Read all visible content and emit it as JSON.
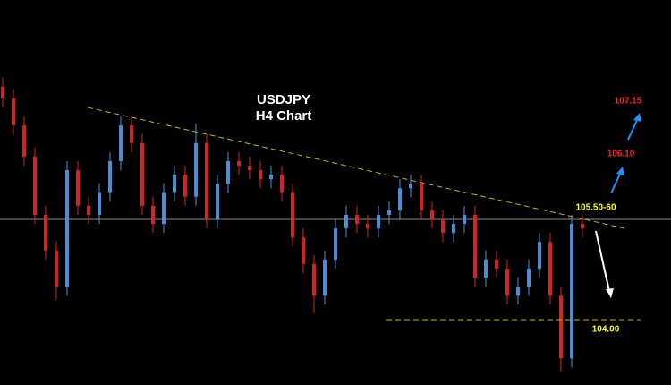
{
  "chart_data": {
    "type": "candlestick",
    "title": "USDJPY",
    "subtitle": "H4 Chart",
    "up_color": "#4a8fd6",
    "down_color": "#d42323",
    "ylim": [
      102.99,
      108.94
    ],
    "open": [
      107.6,
      107.42,
      107.0,
      106.52,
      105.62,
      105.07,
      104.51,
      106.31,
      105.76,
      105.62,
      105.97,
      106.45,
      107.0,
      106.73,
      105.76,
      105.48,
      105.97,
      106.24,
      105.9,
      106.73,
      105.55,
      106.1,
      106.45,
      106.38,
      106.31,
      106.17,
      106.24,
      105.97,
      105.27,
      104.86,
      104.37,
      104.93,
      105.41,
      105.62,
      105.48,
      105.41,
      105.62,
      105.69,
      106.03,
      106.1,
      105.69,
      105.55,
      105.34,
      105.48,
      105.62,
      104.65,
      104.93,
      104.79,
      104.37,
      104.51,
      104.79,
      105.2,
      104.37,
      103.4,
      105.48
    ],
    "high": [
      107.74,
      107.56,
      107.14,
      106.66,
      105.76,
      105.21,
      106.45,
      106.45,
      105.9,
      106.11,
      106.59,
      107.14,
      107.14,
      106.87,
      105.9,
      106.11,
      106.38,
      106.38,
      107.03,
      106.87,
      106.24,
      106.59,
      106.59,
      106.52,
      106.45,
      106.38,
      106.38,
      106.11,
      105.41,
      105.0,
      105.07,
      105.55,
      105.76,
      105.76,
      105.62,
      105.76,
      105.83,
      106.17,
      106.24,
      106.24,
      105.83,
      105.69,
      105.62,
      105.76,
      105.76,
      105.07,
      105.07,
      104.93,
      104.65,
      104.93,
      105.34,
      105.34,
      104.51,
      105.62,
      105.62
    ],
    "low": [
      107.28,
      106.86,
      106.38,
      105.48,
      104.93,
      104.3,
      104.37,
      105.62,
      105.48,
      105.48,
      105.83,
      106.31,
      106.59,
      105.62,
      105.34,
      105.34,
      105.83,
      105.76,
      105.76,
      105.41,
      105.41,
      105.96,
      106.24,
      106.17,
      106.03,
      106.03,
      105.83,
      105.13,
      104.72,
      104.1,
      104.23,
      104.79,
      105.27,
      105.34,
      105.27,
      105.27,
      105.48,
      105.55,
      105.89,
      105.55,
      105.41,
      105.2,
      105.2,
      105.34,
      104.51,
      104.51,
      104.65,
      104.23,
      104.23,
      104.37,
      104.65,
      104.23,
      103.2,
      103.26,
      105.27
    ],
    "close": [
      107.42,
      107.0,
      106.52,
      105.62,
      105.07,
      104.51,
      106.31,
      105.76,
      105.62,
      105.97,
      106.45,
      107.0,
      106.73,
      105.76,
      105.48,
      105.97,
      106.24,
      105.9,
      106.73,
      105.55,
      106.1,
      106.45,
      106.38,
      106.31,
      106.17,
      106.24,
      105.97,
      105.27,
      104.86,
      104.37,
      104.93,
      105.41,
      105.62,
      105.48,
      105.41,
      105.62,
      105.69,
      106.03,
      106.1,
      105.69,
      105.55,
      105.34,
      105.48,
      105.62,
      104.65,
      104.93,
      104.79,
      104.37,
      104.51,
      104.79,
      105.2,
      104.37,
      103.4,
      105.48,
      105.41
    ],
    "support": {
      "value": 104,
      "label": "104.00",
      "color": "#c8b400"
    },
    "annotations": [
      {
        "text": "107.15",
        "color": "#ff2020"
      },
      {
        "text": "106.10",
        "color": "#ff2020"
      },
      {
        "text": "105.50-60",
        "color": "#ffff00"
      }
    ]
  }
}
